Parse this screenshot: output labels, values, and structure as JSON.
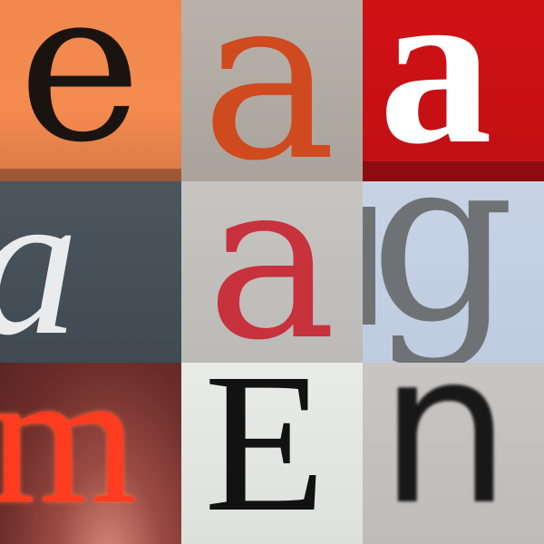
{
  "tiles": [
    {
      "letter": "e",
      "bg": "#f48a50",
      "fg": "#1a1411"
    },
    {
      "letter": "a",
      "bg": "#aaa39c",
      "fg": "#cf4a1e"
    },
    {
      "letter": "a",
      "bg": "#c00f14",
      "fg": "#ffffff"
    },
    {
      "letter": "a",
      "bg": "#46515a",
      "fg": "#e9ebed"
    },
    {
      "letter": "a",
      "bg": "#c2c0bd",
      "fg": "#c7323d"
    },
    {
      "letter": "g",
      "bg": "#c3cfe3",
      "fg": "#6f7275"
    },
    {
      "letter": "m",
      "bg": "#6e2e2b",
      "fg": "#ff3b20"
    },
    {
      "letter": "E",
      "bg": "#e3e6e2",
      "fg": "#121212"
    },
    {
      "letter": "n",
      "bg": "#c4c0be",
      "fg": "#181818"
    }
  ]
}
